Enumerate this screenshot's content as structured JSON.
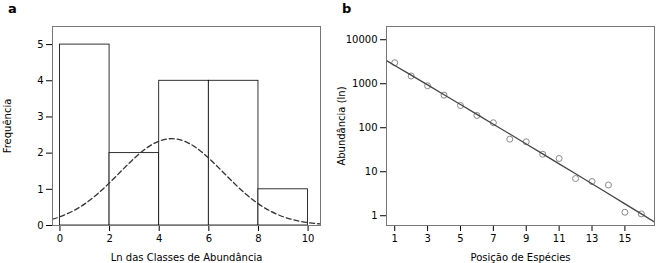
{
  "chart_data": [
    {
      "type": "histogram",
      "title": "a",
      "bins": [
        0,
        2,
        4,
        6,
        8,
        10
      ],
      "counts": [
        5,
        2,
        4,
        4,
        1
      ],
      "color": "#ffffff",
      "series": [
        {
          "type": "line",
          "line_style": "dashed",
          "color": "#333333",
          "x": [
            -0.3,
            0,
            0.5,
            1,
            1.5,
            2,
            2.5,
            3,
            3.5,
            4,
            4.5,
            5,
            5.5,
            6,
            6.5,
            7,
            7.5,
            8,
            8.5,
            9,
            9.5,
            10,
            10.5
          ],
          "values": [
            0.176,
            0.242,
            0.391,
            0.598,
            0.865,
            1.182,
            1.525,
            1.86,
            2.143,
            2.333,
            2.4,
            2.333,
            2.143,
            1.86,
            1.525,
            1.182,
            0.865,
            0.598,
            0.391,
            0.242,
            0.141,
            0.078,
            0.041
          ]
        }
      ],
      "xlabel": "Ln das Classes de Abundância",
      "ylabel": "Frequência",
      "xlim": [
        -0.3,
        10.5
      ],
      "ylim": [
        0,
        5.5
      ],
      "xticks": [
        0,
        2,
        4,
        6,
        8,
        10
      ],
      "yticks": [
        0,
        1,
        2,
        3,
        4,
        5
      ]
    },
    {
      "type": "scatter",
      "title": "b",
      "marker": "circle",
      "color": "#888888",
      "x": [
        1,
        2,
        3,
        4,
        5,
        6,
        7,
        8,
        9,
        10,
        11,
        12,
        13,
        14,
        15,
        16
      ],
      "values": [
        3000,
        1500,
        900,
        550,
        320,
        190,
        130,
        55,
        48,
        25,
        20,
        7,
        6,
        5,
        1.2,
        1.1
      ],
      "series": [
        {
          "type": "line",
          "line_style": "solid",
          "color": "#444444",
          "x": [
            0.5,
            1,
            2,
            3,
            4,
            5,
            6,
            7,
            8,
            9,
            10,
            11,
            12,
            13,
            14,
            15,
            16,
            16.8
          ],
          "values": [
            3359,
            2605,
            1565.5,
            939.6,
            563.2,
            337.2,
            201.6,
            120.4,
            71.83,
            42.79,
            25.46,
            15.13,
            8.977,
            5.32,
            3.15,
            1.862,
            1.0996,
            0.7208
          ]
        }
      ],
      "log": "y",
      "xlabel": "Posição de Espécies",
      "ylabel": "Abundância (ln)",
      "xlim": [
        0.5,
        16.8
      ],
      "ylim": [
        0.6,
        20000
      ],
      "xticks": [
        1,
        3,
        5,
        7,
        9,
        11,
        13,
        15
      ],
      "yticks": [
        1,
        10,
        100,
        1000,
        10000
      ]
    }
  ]
}
